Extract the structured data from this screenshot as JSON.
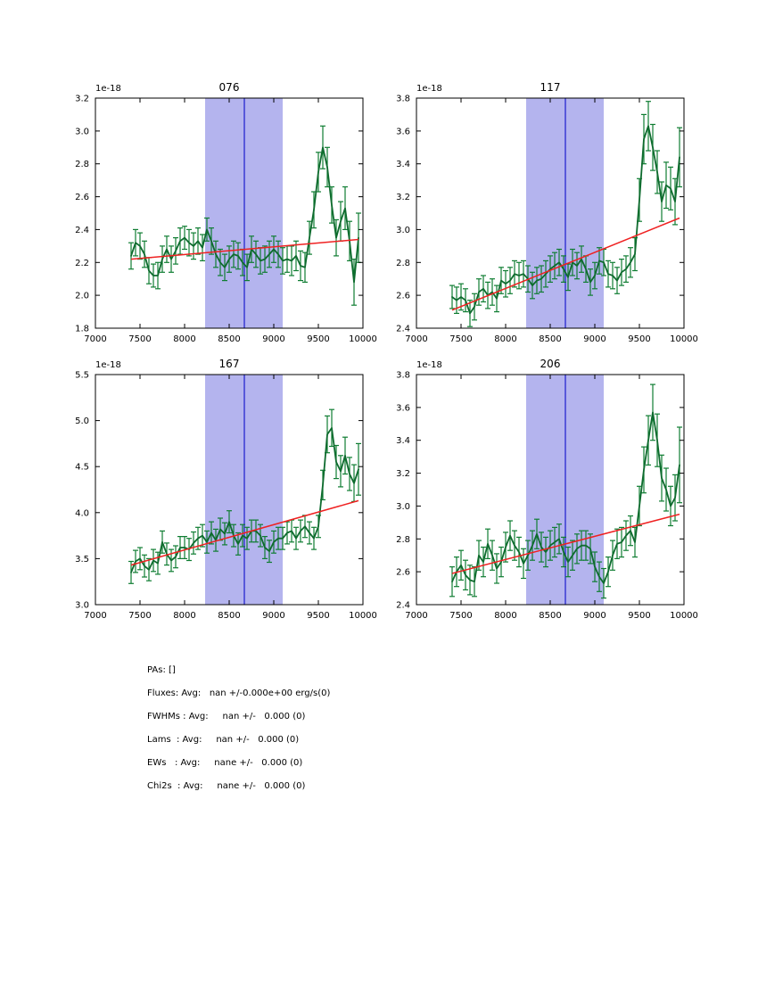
{
  "figure": {
    "background": "#ffffff"
  },
  "colors": {
    "band": "#b4b4ee",
    "vline": "#2727cf",
    "trend_red": "#ef2121",
    "line_green": "#0e6b2e",
    "err_green": "#0f7d32",
    "frame": "#000000"
  },
  "chart_data": [
    {
      "type": "line",
      "title": "076",
      "offset_text": "1e-18",
      "xlabel": "",
      "ylabel": "",
      "xlim": [
        7000,
        10000
      ],
      "ylim": [
        1.8,
        3.2
      ],
      "xticks": [
        "7000",
        "7500",
        "8000",
        "8500",
        "9000",
        "9500",
        "10000"
      ],
      "yticks": [
        "1.8",
        "2.0",
        "2.2",
        "2.4",
        "2.6",
        "2.8",
        "3.0",
        "3.2"
      ],
      "band": [
        8230,
        9100
      ],
      "vline": 8670,
      "trend": {
        "x": [
          7400,
          9950
        ],
        "y": [
          2.22,
          2.34
        ]
      },
      "x_start": 7400,
      "x_step": 50,
      "values": [
        2.24,
        2.32,
        2.3,
        2.25,
        2.15,
        2.12,
        2.12,
        2.22,
        2.28,
        2.22,
        2.27,
        2.33,
        2.35,
        2.32,
        2.3,
        2.33,
        2.29,
        2.4,
        2.33,
        2.25,
        2.2,
        2.17,
        2.22,
        2.25,
        2.24,
        2.2,
        2.17,
        2.28,
        2.25,
        2.21,
        2.22,
        2.25,
        2.28,
        2.25,
        2.21,
        2.22,
        2.21,
        2.24,
        2.18,
        2.17,
        2.35,
        2.52,
        2.75,
        2.9,
        2.78,
        2.55,
        2.35,
        2.45,
        2.53,
        2.33,
        2.08,
        2.35
      ],
      "errors": [
        0.08,
        0.08,
        0.08,
        0.08,
        0.08,
        0.07,
        0.08,
        0.08,
        0.08,
        0.08,
        0.08,
        0.08,
        0.07,
        0.08,
        0.08,
        0.08,
        0.08,
        0.07,
        0.08,
        0.08,
        0.08,
        0.08,
        0.08,
        0.08,
        0.08,
        0.08,
        0.08,
        0.08,
        0.08,
        0.08,
        0.08,
        0.08,
        0.08,
        0.08,
        0.08,
        0.08,
        0.09,
        0.09,
        0.09,
        0.09,
        0.1,
        0.11,
        0.12,
        0.13,
        0.12,
        0.11,
        0.11,
        0.12,
        0.13,
        0.12,
        0.14,
        0.15
      ]
    },
    {
      "type": "line",
      "title": "117",
      "offset_text": "1e-18",
      "xlabel": "",
      "ylabel": "",
      "xlim": [
        7000,
        10000
      ],
      "ylim": [
        2.4,
        3.8
      ],
      "xticks": [
        "7000",
        "7500",
        "8000",
        "8500",
        "9000",
        "9500",
        "10000"
      ],
      "yticks": [
        "2.4",
        "2.6",
        "2.8",
        "3.0",
        "3.2",
        "3.4",
        "3.6",
        "3.8"
      ],
      "band": [
        8230,
        9100
      ],
      "vline": 8670,
      "trend": {
        "x": [
          7400,
          9950
        ],
        "y": [
          2.51,
          3.07
        ]
      },
      "x_start": 7400,
      "x_step": 50,
      "values": [
        2.59,
        2.57,
        2.59,
        2.57,
        2.49,
        2.53,
        2.62,
        2.64,
        2.6,
        2.62,
        2.58,
        2.69,
        2.67,
        2.69,
        2.73,
        2.72,
        2.73,
        2.7,
        2.66,
        2.69,
        2.7,
        2.73,
        2.76,
        2.78,
        2.8,
        2.76,
        2.71,
        2.8,
        2.78,
        2.82,
        2.76,
        2.68,
        2.72,
        2.81,
        2.8,
        2.73,
        2.72,
        2.69,
        2.74,
        2.76,
        2.8,
        2.85,
        3.18,
        3.55,
        3.63,
        3.5,
        3.35,
        3.17,
        3.27,
        3.25,
        3.17,
        3.44
      ],
      "errors": [
        0.07,
        0.08,
        0.08,
        0.07,
        0.08,
        0.08,
        0.08,
        0.08,
        0.08,
        0.08,
        0.08,
        0.08,
        0.08,
        0.08,
        0.08,
        0.08,
        0.08,
        0.08,
        0.08,
        0.08,
        0.08,
        0.08,
        0.08,
        0.08,
        0.08,
        0.08,
        0.08,
        0.08,
        0.08,
        0.08,
        0.08,
        0.08,
        0.08,
        0.08,
        0.08,
        0.08,
        0.08,
        0.08,
        0.08,
        0.08,
        0.09,
        0.1,
        0.13,
        0.15,
        0.15,
        0.14,
        0.13,
        0.12,
        0.14,
        0.13,
        0.14,
        0.18
      ]
    },
    {
      "type": "line",
      "title": "167",
      "offset_text": "1e-18",
      "xlabel": "",
      "ylabel": "",
      "xlim": [
        7000,
        10000
      ],
      "ylim": [
        3.0,
        5.5
      ],
      "xticks": [
        "7000",
        "7500",
        "8000",
        "8500",
        "9000",
        "9500",
        "10000"
      ],
      "yticks": [
        "3.0",
        "3.5",
        "4.0",
        "4.5",
        "5.0",
        "5.5"
      ],
      "band": [
        8230,
        9100
      ],
      "vline": 8670,
      "trend": {
        "x": [
          7400,
          9950
        ],
        "y": [
          3.43,
          4.13
        ]
      },
      "x_start": 7400,
      "x_step": 50,
      "values": [
        3.35,
        3.47,
        3.5,
        3.42,
        3.38,
        3.48,
        3.45,
        3.68,
        3.55,
        3.48,
        3.52,
        3.62,
        3.62,
        3.6,
        3.67,
        3.72,
        3.75,
        3.68,
        3.78,
        3.7,
        3.82,
        3.77,
        3.9,
        3.75,
        3.66,
        3.75,
        3.72,
        3.8,
        3.8,
        3.75,
        3.62,
        3.58,
        3.68,
        3.72,
        3.72,
        3.78,
        3.8,
        3.72,
        3.8,
        3.85,
        3.78,
        3.72,
        3.85,
        4.3,
        4.85,
        4.92,
        4.55,
        4.45,
        4.62,
        4.42,
        4.32,
        4.47
      ],
      "errors": [
        0.12,
        0.12,
        0.12,
        0.12,
        0.12,
        0.12,
        0.12,
        0.12,
        0.12,
        0.12,
        0.12,
        0.12,
        0.12,
        0.12,
        0.12,
        0.12,
        0.12,
        0.12,
        0.12,
        0.12,
        0.12,
        0.12,
        0.12,
        0.12,
        0.12,
        0.12,
        0.12,
        0.12,
        0.12,
        0.12,
        0.12,
        0.12,
        0.12,
        0.12,
        0.12,
        0.12,
        0.12,
        0.12,
        0.12,
        0.12,
        0.12,
        0.12,
        0.12,
        0.16,
        0.2,
        0.2,
        0.18,
        0.17,
        0.2,
        0.18,
        0.2,
        0.28
      ]
    },
    {
      "type": "line",
      "title": "206",
      "offset_text": "1e-18",
      "xlabel": "",
      "ylabel": "",
      "xlim": [
        7000,
        10000
      ],
      "ylim": [
        2.4,
        3.8
      ],
      "xticks": [
        "7000",
        "7500",
        "8000",
        "8500",
        "9000",
        "9500",
        "10000"
      ],
      "yticks": [
        "2.4",
        "2.6",
        "2.8",
        "3.0",
        "3.2",
        "3.4",
        "3.6",
        "3.8"
      ],
      "band": [
        8230,
        9100
      ],
      "vline": 8670,
      "trend": {
        "x": [
          7400,
          9950
        ],
        "y": [
          2.59,
          2.95
        ]
      },
      "x_start": 7400,
      "x_step": 50,
      "values": [
        2.54,
        2.6,
        2.64,
        2.58,
        2.55,
        2.54,
        2.7,
        2.66,
        2.77,
        2.7,
        2.62,
        2.66,
        2.75,
        2.82,
        2.76,
        2.72,
        2.65,
        2.7,
        2.76,
        2.83,
        2.75,
        2.72,
        2.76,
        2.78,
        2.8,
        2.72,
        2.66,
        2.7,
        2.74,
        2.76,
        2.76,
        2.74,
        2.63,
        2.57,
        2.53,
        2.6,
        2.7,
        2.77,
        2.78,
        2.82,
        2.85,
        2.78,
        3.0,
        3.22,
        3.4,
        3.57,
        3.4,
        3.17,
        3.1,
        3.0,
        3.05,
        3.25
      ],
      "errors": [
        0.09,
        0.09,
        0.09,
        0.09,
        0.09,
        0.09,
        0.09,
        0.09,
        0.09,
        0.09,
        0.09,
        0.09,
        0.09,
        0.09,
        0.09,
        0.09,
        0.09,
        0.09,
        0.09,
        0.09,
        0.09,
        0.09,
        0.09,
        0.09,
        0.09,
        0.09,
        0.09,
        0.09,
        0.09,
        0.09,
        0.09,
        0.09,
        0.09,
        0.09,
        0.09,
        0.09,
        0.09,
        0.09,
        0.09,
        0.09,
        0.09,
        0.09,
        0.12,
        0.14,
        0.15,
        0.17,
        0.16,
        0.14,
        0.13,
        0.12,
        0.14,
        0.23
      ]
    }
  ],
  "stats": {
    "lines": [
      "PAs: []",
      "Fluxes: Avg:   nan +/-0.000e+00 erg/s(0)",
      "FWHMs : Avg:     nan +/-   0.000 (0)",
      "Lams  : Avg:     nan +/-   0.000 (0)",
      "EWs   : Avg:     nane +/-   0.000 (0)",
      "Chi2s  : Avg:     nane +/-   0.000 (0)"
    ]
  }
}
